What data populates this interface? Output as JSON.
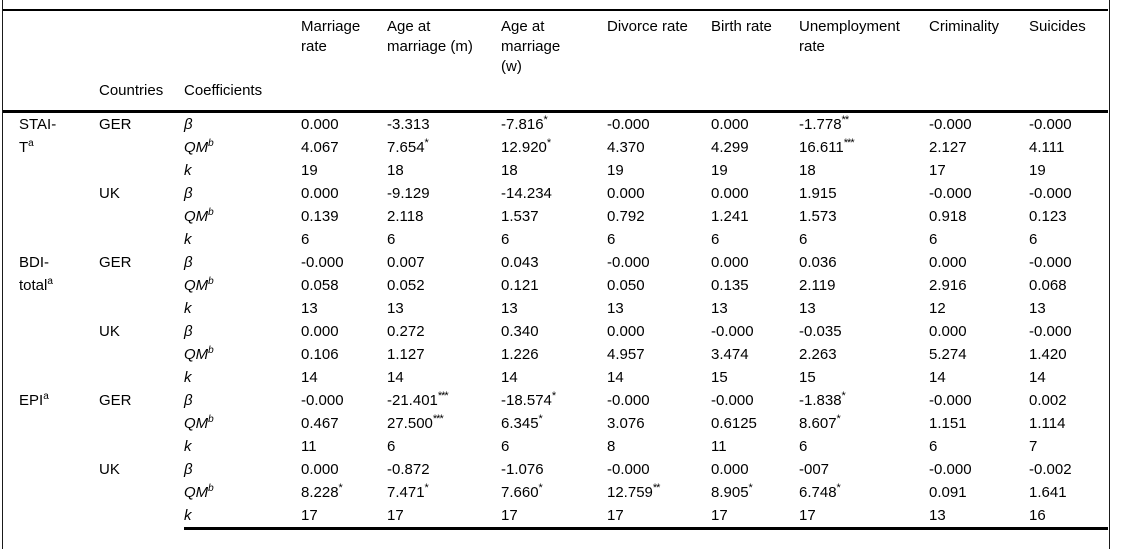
{
  "table": {
    "header": {
      "corner": "",
      "countries_label": "Countries",
      "coefficients_label": "Coefficients",
      "columns": [
        "Marriage rate",
        "Age at marriage (m)",
        "Age at marriage (w)",
        "Divorce rate",
        "Birth rate",
        "Unemployment rate",
        "Criminality",
        "Suicides"
      ]
    },
    "coefficient_labels": {
      "beta": "β",
      "qm": "QM",
      "qm_sup": "b",
      "k": "k"
    },
    "blocks": [
      {
        "scale_lines": [
          "STAI-",
          "T"
        ],
        "scale_sup": "a",
        "country": "GER",
        "beta": [
          "0.000",
          "-3.313",
          "-7.816*",
          "-0.000",
          "0.000",
          "-1.778**",
          "-0.000",
          "-0.000"
        ],
        "qm": [
          "4.067",
          "7.654*",
          "12.920*",
          "4.370",
          "4.299",
          "16.611***",
          "2.127",
          "4.111"
        ],
        "k": [
          "19",
          "18",
          "18",
          "19",
          "19",
          "18",
          "17",
          "19"
        ]
      },
      {
        "scale_lines": [],
        "scale_sup": "",
        "country": "UK",
        "beta": [
          "0.000",
          "-9.129",
          "-14.234",
          "0.000",
          "0.000",
          "1.915",
          "-0.000",
          "-0.000"
        ],
        "qm": [
          "0.139",
          "2.118",
          "1.537",
          "0.792",
          "1.241",
          "1.573",
          "0.918",
          "0.123"
        ],
        "k": [
          "6",
          "6",
          "6",
          "6",
          "6",
          "6",
          "6",
          "6"
        ]
      },
      {
        "scale_lines": [
          "BDI-",
          "total"
        ],
        "scale_sup": "a",
        "country": "GER",
        "beta": [
          "-0.000",
          "0.007",
          "0.043",
          "-0.000",
          "0.000",
          "0.036",
          "0.000",
          "-0.000"
        ],
        "qm": [
          "0.058",
          "0.052",
          "0.121",
          "0.050",
          "0.135",
          "2.119",
          "2.916",
          "0.068"
        ],
        "k": [
          "13",
          "13",
          "13",
          "13",
          "13",
          "13",
          "12",
          "13"
        ]
      },
      {
        "scale_lines": [],
        "scale_sup": "",
        "country": "UK",
        "beta": [
          "0.000",
          "0.272",
          "0.340",
          "0.000",
          "-0.000",
          "-0.035",
          "0.000",
          "-0.000"
        ],
        "qm": [
          "0.106",
          "1.127",
          "1.226",
          "4.957",
          "3.474",
          "2.263",
          "5.274",
          "1.420"
        ],
        "k": [
          "14",
          "14",
          "14",
          "14",
          "15",
          "15",
          "14",
          "14"
        ]
      },
      {
        "scale_lines": [
          "EPI"
        ],
        "scale_sup": "a",
        "country": "GER",
        "beta": [
          "-0.000",
          "-21.401***",
          "-18.574*",
          "-0.000",
          "-0.000",
          "-1.838*",
          "-0.000",
          "0.002"
        ],
        "qm": [
          "0.467",
          "27.500***",
          "6.345*",
          "3.076",
          "0.6125",
          "8.607*",
          "1.151",
          "1.114"
        ],
        "k": [
          "11",
          "6",
          "6",
          "8",
          "11",
          "6",
          "6",
          "7"
        ]
      },
      {
        "scale_lines": [],
        "scale_sup": "",
        "country": "UK",
        "beta": [
          "0.000",
          "-0.872",
          "-1.076",
          "-0.000",
          "0.000",
          "-007",
          "-0.000",
          "-0.002"
        ],
        "qm": [
          "8.228*",
          "7.471*",
          "7.660*",
          "12.759**",
          "8.905*",
          "6.748*",
          "0.091",
          "1.641"
        ],
        "k": [
          "17",
          "17",
          "17",
          "17",
          "17",
          "17",
          "13",
          "16"
        ]
      }
    ]
  }
}
